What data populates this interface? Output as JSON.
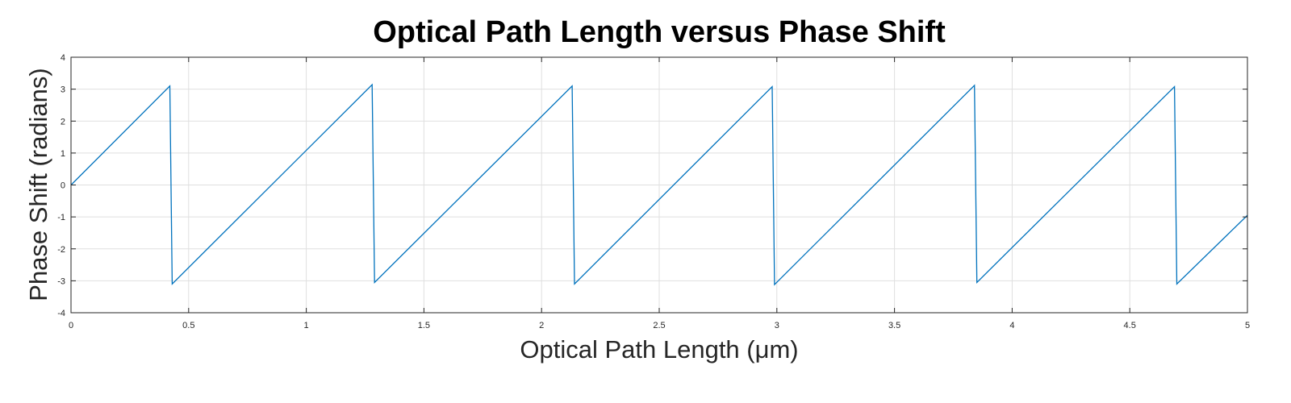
{
  "chart_data": {
    "type": "line",
    "title": "Optical Path Length versus Phase Shift",
    "xlabel": "Optical Path Length (μm)",
    "ylabel": "Phase Shift (radians)",
    "xlim": [
      0,
      5
    ],
    "ylim": [
      -4,
      4
    ],
    "xticks": [
      0,
      0.5,
      1,
      1.5,
      2,
      2.5,
      3,
      3.5,
      4,
      4.5,
      5
    ],
    "xtick_labels": [
      "0",
      "0.5",
      "1",
      "1.5",
      "2",
      "2.5",
      "3",
      "3.5",
      "4",
      "4.5",
      "5"
    ],
    "yticks": [
      -4,
      -3,
      -2,
      -1,
      0,
      1,
      2,
      3,
      4
    ],
    "ytick_labels": [
      "-4",
      "-3",
      "-2",
      "-1",
      "0",
      "1",
      "2",
      "3",
      "4"
    ],
    "grid": true,
    "series": [
      {
        "color": "#0072bd",
        "x": [
          0,
          0.42,
          0.43,
          1.28,
          1.29,
          2.13,
          2.14,
          2.98,
          2.99,
          3.84,
          3.85,
          4.69,
          4.7,
          5.0
        ],
        "y": [
          0,
          3.1,
          -3.1,
          3.14,
          -3.05,
          3.1,
          -3.1,
          3.08,
          -3.12,
          3.12,
          -3.05,
          3.08,
          -3.1,
          -0.95
        ]
      }
    ]
  }
}
